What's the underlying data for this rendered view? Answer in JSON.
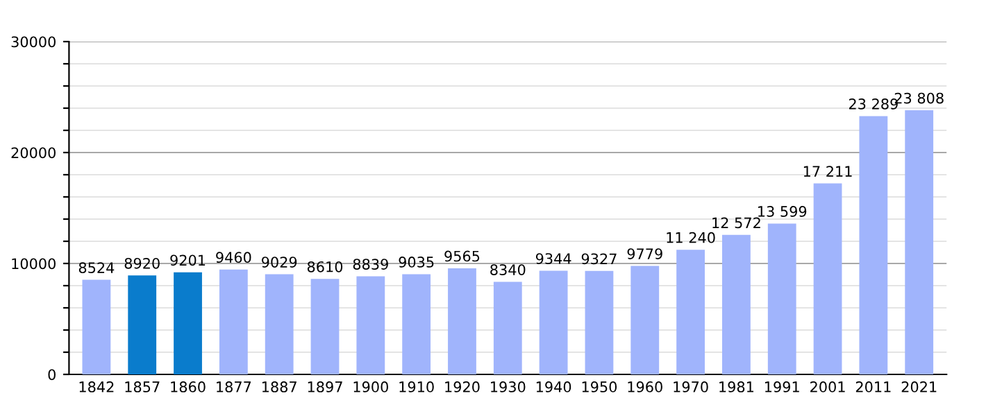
{
  "chart_data": {
    "type": "bar",
    "categories": [
      "1842",
      "1857",
      "1860",
      "1877",
      "1887",
      "1897",
      "1900",
      "1910",
      "1920",
      "1930",
      "1940",
      "1950",
      "1960",
      "1970",
      "1981",
      "1991",
      "2001",
      "2011",
      "2021"
    ],
    "values": [
      8524,
      8920,
      9201,
      9460,
      9029,
      8610,
      8839,
      9035,
      9565,
      8340,
      9344,
      9327,
      9779,
      11240,
      12572,
      13599,
      17211,
      23289,
      23808
    ],
    "colors": [
      "#a0b4fc",
      "#0a7ccc",
      "#0a7ccc",
      "#a0b4fc",
      "#a0b4fc",
      "#a0b4fc",
      "#a0b4fc",
      "#a0b4fc",
      "#a0b4fc",
      "#a0b4fc",
      "#a0b4fc",
      "#a0b4fc",
      "#a0b4fc",
      "#a0b4fc",
      "#a0b4fc",
      "#a0b4fc",
      "#a0b4fc",
      "#a0b4fc",
      "#a0b4fc"
    ],
    "value_labels": [
      "8524",
      "8920",
      "9201",
      "9460",
      "9029",
      "8610",
      "8839",
      "9035",
      "9565",
      "8340",
      "9344",
      "9327",
      "9779",
      "11 240",
      "12 572",
      "13 599",
      "17 211",
      "23 289",
      "23 808"
    ],
    "ylim": [
      0,
      30000
    ],
    "yticks": [
      0,
      {
        "value": 2000,
        "label": null
      },
      {
        "value": 4000,
        "label": null
      },
      {
        "value": 6000,
        "label": null
      },
      {
        "value": 8000,
        "label": null
      },
      10000,
      {
        "value": 12000,
        "label": null
      },
      {
        "value": 14000,
        "label": null
      },
      {
        "value": 16000,
        "label": null
      },
      {
        "value": 18000,
        "label": null
      },
      20000,
      {
        "value": 22000,
        "label": null
      },
      {
        "value": 24000,
        "label": null
      },
      {
        "value": 26000,
        "label": null
      },
      {
        "value": 28000,
        "label": null
      },
      30000
    ],
    "grid": "y"
  }
}
